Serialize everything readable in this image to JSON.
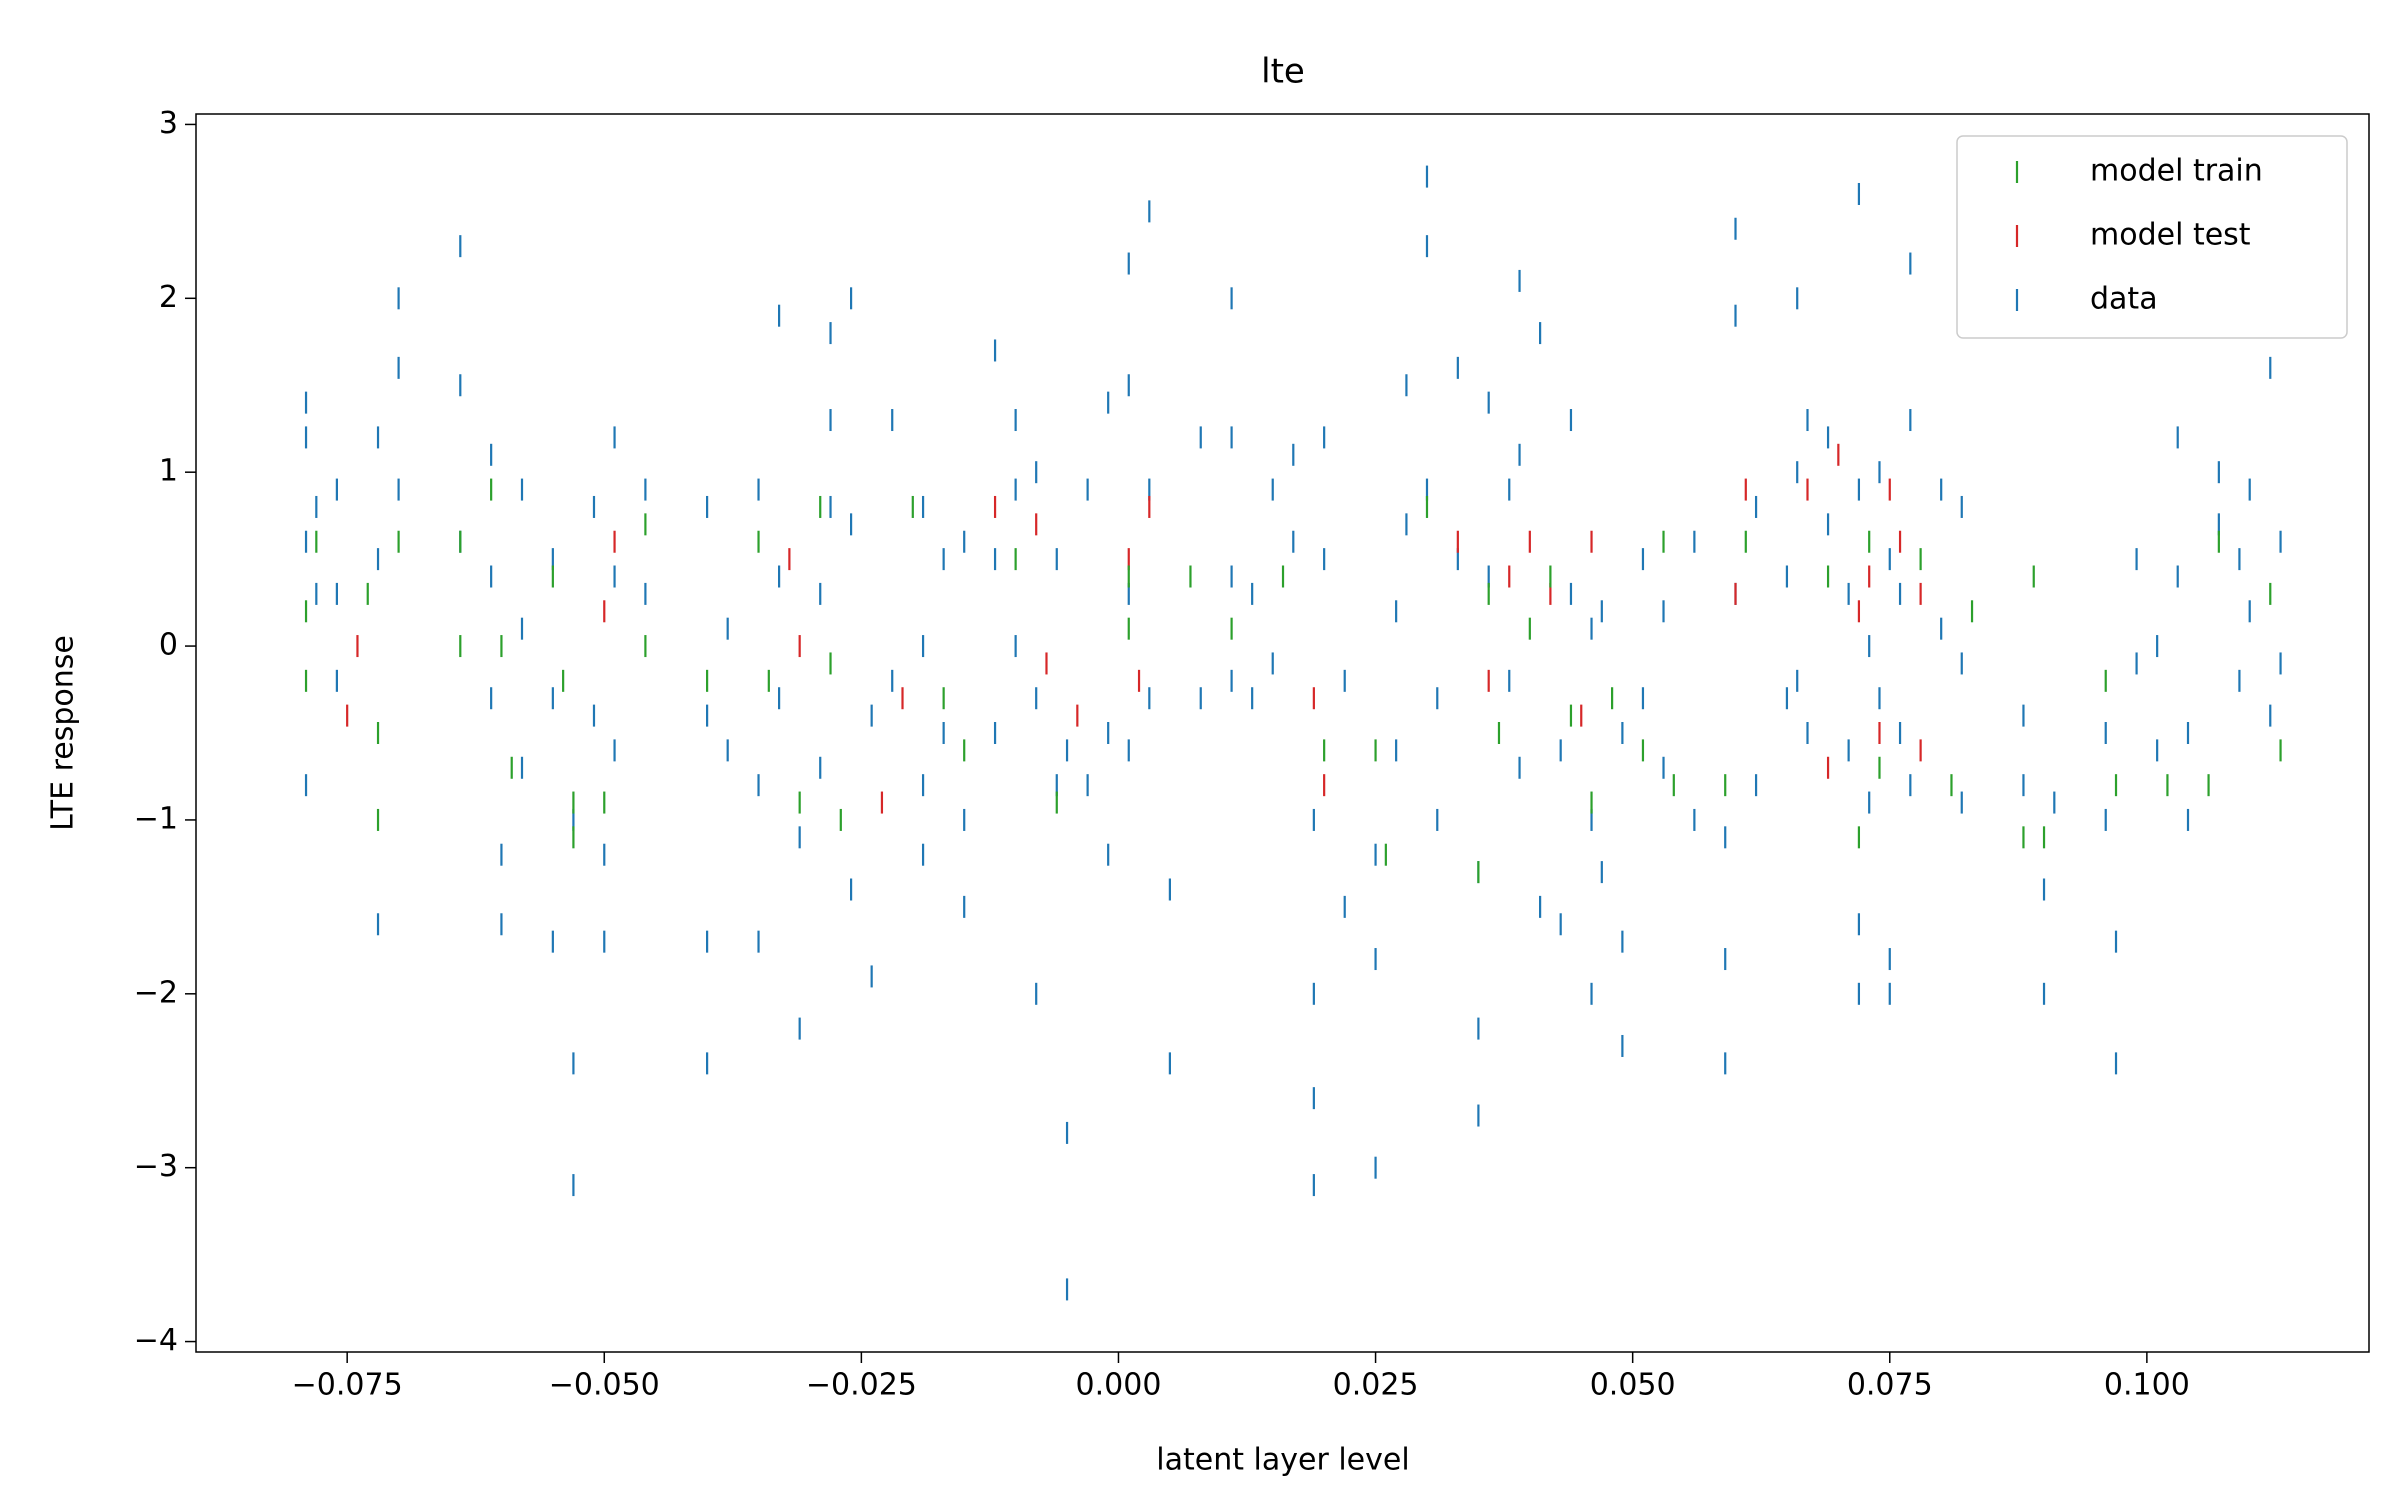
{
  "chart_data": {
    "type": "scatter",
    "title": "lte",
    "x_label": "latent layer level",
    "y_label": "LTE response",
    "xlim": [
      -0.0897,
      0.1216
    ],
    "ylim": [
      -4.06,
      3.06
    ],
    "xticks": [
      {
        "value": -0.075,
        "label": "−0.075"
      },
      {
        "value": -0.05,
        "label": "−0.050"
      },
      {
        "value": -0.025,
        "label": "−0.025"
      },
      {
        "value": 0,
        "label": "0.000"
      },
      {
        "value": 0.025,
        "label": "0.025"
      },
      {
        "value": 0.05,
        "label": "0.050"
      },
      {
        "value": 0.075,
        "label": "0.075"
      },
      {
        "value": 0.1,
        "label": "0.100"
      }
    ],
    "yticks": [
      {
        "value": -4,
        "label": "−4"
      },
      {
        "value": -3,
        "label": "−3"
      },
      {
        "value": -2,
        "label": "−2"
      },
      {
        "value": -1,
        "label": "−1"
      },
      0,
      1,
      2,
      3
    ],
    "grid": false,
    "legend": "upper right",
    "series": [
      {
        "name": "model train",
        "color": "#2ca02c",
        "x": [
          -0.079,
          -0.079,
          -0.078,
          -0.073,
          -0.072,
          -0.072,
          -0.07,
          -0.064,
          -0.064,
          -0.061,
          -0.06,
          -0.059,
          -0.055,
          -0.054,
          -0.053,
          -0.053,
          -0.05,
          -0.046,
          -0.046,
          -0.04,
          -0.035,
          -0.034,
          -0.031,
          -0.029,
          -0.028,
          -0.027,
          -0.02,
          -0.017,
          -0.015,
          -0.01,
          -0.006,
          0.001,
          0.001,
          0.007,
          0.011,
          0.016,
          0.02,
          0.025,
          0.026,
          0.03,
          0.035,
          0.036,
          0.037,
          0.04,
          0.042,
          0.044,
          0.046,
          0.048,
          0.051,
          0.053,
          0.054,
          0.059,
          0.061,
          0.069,
          0.072,
          0.073,
          0.074,
          0.078,
          0.081,
          0.083,
          0.088,
          0.089,
          0.09,
          0.096,
          0.097,
          0.102,
          0.106,
          0.107,
          0.112,
          0.113
        ],
        "values": [
          0.2,
          -0.2,
          0.6,
          0.3,
          -0.5,
          -1.0,
          0.6,
          0.6,
          0.0,
          0.9,
          0.0,
          -0.7,
          0.4,
          -0.2,
          -0.9,
          -1.1,
          -0.9,
          0.7,
          0.0,
          -0.2,
          0.6,
          -0.2,
          -0.9,
          0.8,
          -0.1,
          -1.0,
          0.8,
          -0.3,
          -0.6,
          0.5,
          -0.9,
          0.4,
          0.1,
          0.4,
          0.1,
          0.4,
          -0.6,
          -0.6,
          -1.2,
          0.8,
          -1.3,
          0.3,
          -0.5,
          0.1,
          0.4,
          -0.4,
          -0.9,
          -0.3,
          -0.6,
          0.6,
          -0.8,
          -0.8,
          0.6,
          0.4,
          -1.1,
          0.6,
          -0.7,
          0.5,
          -0.8,
          0.2,
          -1.1,
          0.4,
          -1.1,
          -0.2,
          -0.8,
          -0.8,
          -0.8,
          0.6,
          0.3,
          -0.6
        ]
      },
      {
        "name": "model test",
        "color": "#d62728",
        "x": [
          -0.075,
          -0.074,
          -0.05,
          -0.049,
          -0.032,
          -0.031,
          -0.023,
          -0.021,
          -0.012,
          -0.008,
          -0.007,
          -0.004,
          0.001,
          0.002,
          0.003,
          0.019,
          0.02,
          0.033,
          0.036,
          0.038,
          0.04,
          0.042,
          0.045,
          0.046,
          0.06,
          0.061,
          0.067,
          0.069,
          0.07,
          0.072,
          0.073,
          0.074,
          0.075,
          0.076,
          0.078,
          0.078
        ],
        "values": [
          -0.4,
          0.0,
          0.2,
          0.6,
          0.5,
          0.0,
          -0.9,
          -0.3,
          0.8,
          0.7,
          -0.1,
          -0.4,
          0.5,
          -0.2,
          0.8,
          -0.3,
          -0.8,
          0.6,
          -0.2,
          0.4,
          0.6,
          0.3,
          -0.4,
          0.6,
          0.3,
          0.9,
          0.9,
          -0.7,
          1.1,
          0.2,
          0.4,
          -0.5,
          0.9,
          0.6,
          -0.6,
          0.3
        ]
      },
      {
        "name": "data",
        "color": "#1f77b4",
        "x": [
          -0.079,
          -0.079,
          -0.079,
          -0.079,
          -0.078,
          -0.078,
          -0.076,
          -0.076,
          -0.076,
          -0.072,
          -0.072,
          -0.072,
          -0.07,
          -0.07,
          -0.07,
          -0.064,
          -0.064,
          -0.064,
          -0.061,
          -0.061,
          -0.061,
          -0.06,
          -0.06,
          -0.058,
          -0.058,
          -0.058,
          -0.055,
          -0.055,
          -0.055,
          -0.053,
          -0.053,
          -0.053,
          -0.051,
          -0.051,
          -0.05,
          -0.05,
          -0.049,
          -0.049,
          -0.049,
          -0.046,
          -0.046,
          -0.04,
          -0.04,
          -0.04,
          -0.04,
          -0.038,
          -0.038,
          -0.035,
          -0.035,
          -0.035,
          -0.033,
          -0.033,
          -0.033,
          -0.031,
          -0.031,
          -0.029,
          -0.029,
          -0.028,
          -0.028,
          -0.028,
          -0.026,
          -0.026,
          -0.026,
          -0.024,
          -0.024,
          -0.022,
          -0.022,
          -0.019,
          -0.019,
          -0.019,
          -0.019,
          -0.017,
          -0.017,
          -0.015,
          -0.015,
          -0.015,
          -0.012,
          -0.012,
          -0.012,
          -0.01,
          -0.01,
          -0.01,
          -0.008,
          -0.008,
          -0.008,
          -0.006,
          -0.006,
          -0.005,
          -0.005,
          -0.005,
          -0.003,
          -0.003,
          -0.001,
          -0.001,
          -0.001,
          0.001,
          0.001,
          0.001,
          0.001,
          0.003,
          0.003,
          0.003,
          0.005,
          0.005,
          0.008,
          0.008,
          0.011,
          0.011,
          0.011,
          0.011,
          0.013,
          0.013,
          0.015,
          0.015,
          0.017,
          0.017,
          0.019,
          0.019,
          0.019,
          0.019,
          0.02,
          0.02,
          0.022,
          0.022,
          0.025,
          0.025,
          0.025,
          0.027,
          0.027,
          0.028,
          0.028,
          0.03,
          0.03,
          0.03,
          0.031,
          0.031,
          0.033,
          0.033,
          0.035,
          0.035,
          0.035,
          0.036,
          0.036,
          0.038,
          0.038,
          0.039,
          0.039,
          0.039,
          0.041,
          0.041,
          0.043,
          0.043,
          0.044,
          0.044,
          0.046,
          0.046,
          0.046,
          0.047,
          0.047,
          0.049,
          0.049,
          0.049,
          0.051,
          0.051,
          0.053,
          0.053,
          0.056,
          0.056,
          0.059,
          0.059,
          0.059,
          0.06,
          0.06,
          0.06,
          0.062,
          0.062,
          0.065,
          0.065,
          0.066,
          0.066,
          0.066,
          0.067,
          0.067,
          0.069,
          0.069,
          0.071,
          0.071,
          0.072,
          0.072,
          0.072,
          0.072,
          0.073,
          0.073,
          0.074,
          0.074,
          0.075,
          0.075,
          0.075,
          0.076,
          0.076,
          0.077,
          0.077,
          0.077,
          0.08,
          0.08,
          0.082,
          0.082,
          0.082,
          0.088,
          0.088,
          0.09,
          0.09,
          0.091,
          0.096,
          0.096,
          0.097,
          0.097,
          0.099,
          0.099,
          0.101,
          0.101,
          0.103,
          0.103,
          0.104,
          0.104,
          0.107,
          0.107,
          0.109,
          0.109,
          0.11,
          0.11,
          0.112,
          0.112,
          0.113,
          0.113
        ],
        "values": [
          1.4,
          1.2,
          0.6,
          -0.8,
          0.8,
          0.3,
          0.9,
          0.3,
          -0.2,
          1.2,
          0.5,
          -1.6,
          2.0,
          1.6,
          0.9,
          2.3,
          1.5,
          0.6,
          1.1,
          0.4,
          -0.3,
          -1.2,
          -1.6,
          0.9,
          0.1,
          -0.7,
          0.5,
          -0.3,
          -1.7,
          -1.0,
          -2.4,
          -3.1,
          0.8,
          -0.4,
          -1.2,
          -1.7,
          1.2,
          0.4,
          -0.6,
          0.9,
          0.3,
          0.8,
          -0.4,
          -1.7,
          -2.4,
          0.1,
          -0.6,
          0.9,
          -0.8,
          -1.7,
          1.9,
          0.4,
          -0.3,
          -1.1,
          -2.2,
          0.3,
          -0.7,
          1.8,
          1.3,
          0.8,
          2.0,
          0.7,
          -1.4,
          -0.4,
          -1.9,
          1.3,
          -0.2,
          0.8,
          0.0,
          -0.8,
          -1.2,
          0.5,
          -0.5,
          0.6,
          -1.0,
          -1.5,
          1.7,
          0.5,
          -0.5,
          1.3,
          0.9,
          0.0,
          1.0,
          -0.3,
          -2.0,
          0.5,
          -0.8,
          -2.8,
          -3.7,
          -0.6,
          0.9,
          -0.8,
          1.4,
          -1.2,
          -0.5,
          2.2,
          1.5,
          0.3,
          -0.6,
          2.5,
          0.9,
          -0.3,
          -1.4,
          -2.4,
          1.2,
          -0.3,
          2.0,
          1.2,
          0.4,
          -0.2,
          -0.3,
          0.3,
          0.9,
          -0.1,
          1.1,
          0.6,
          -2.0,
          -2.6,
          -3.1,
          -1.0,
          1.2,
          0.5,
          -0.2,
          -1.5,
          -1.8,
          -1.2,
          -3.0,
          0.2,
          -0.6,
          1.5,
          0.7,
          2.7,
          2.3,
          0.9,
          -0.3,
          -1.0,
          1.6,
          0.5,
          -2.2,
          -2.7,
          -1.3,
          1.4,
          0.4,
          -0.2,
          0.9,
          2.1,
          1.1,
          -0.7,
          1.8,
          -1.5,
          -0.6,
          -1.6,
          0.3,
          1.3,
          -2.0,
          -1.0,
          0.1,
          -1.3,
          0.2,
          -0.5,
          -1.7,
          -2.3,
          0.5,
          -0.3,
          -0.7,
          0.2,
          0.6,
          -1.0,
          -1.1,
          -1.8,
          -2.4,
          2.4,
          1.9,
          0.3,
          0.8,
          -0.8,
          -0.3,
          0.4,
          2.0,
          1.0,
          -0.2,
          1.3,
          -0.5,
          1.2,
          0.7,
          -0.6,
          0.3,
          2.6,
          -1.6,
          -2.0,
          0.9,
          0.0,
          -0.9,
          1.0,
          -0.3,
          -1.8,
          -2.0,
          0.5,
          0.3,
          -0.5,
          2.2,
          1.3,
          -0.8,
          0.9,
          0.1,
          0.8,
          -0.9,
          -0.1,
          -0.4,
          -0.8,
          -1.4,
          -2.0,
          -0.9,
          -0.5,
          -1.0,
          -1.7,
          -2.4,
          0.5,
          -0.1,
          -0.6,
          0.0,
          1.2,
          0.4,
          -0.5,
          -1.0,
          0.7,
          1.0,
          0.5,
          -0.2,
          0.9,
          0.2,
          1.6,
          -0.4,
          0.6,
          -0.1
        ]
      }
    ]
  }
}
